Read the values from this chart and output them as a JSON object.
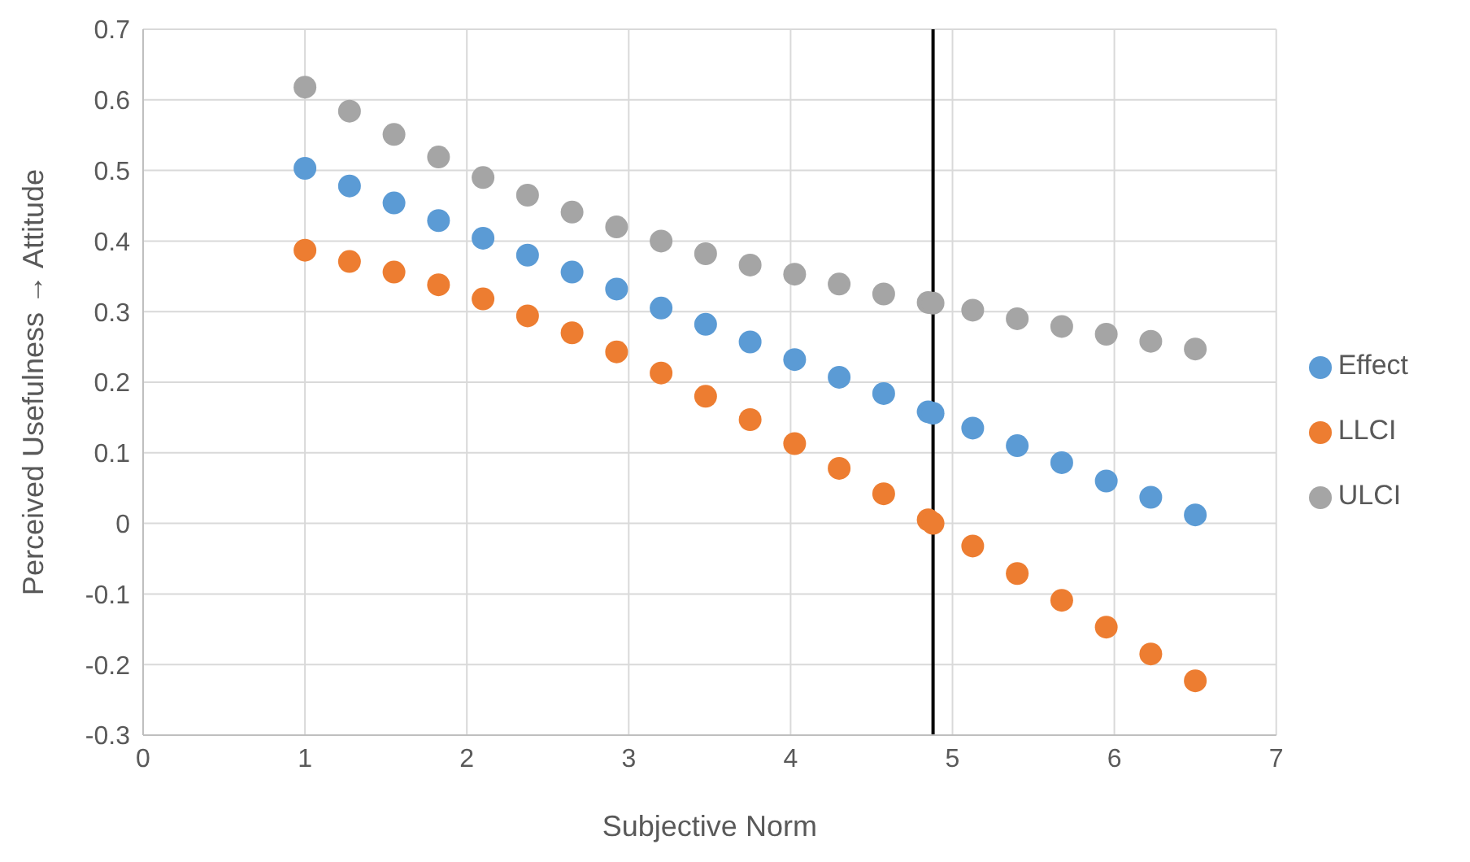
{
  "chart_data": {
    "type": "scatter",
    "xlabel": "Subjective Norm",
    "ylabel": "Perceived Usefulness → Attitude",
    "x": [
      1,
      1.275,
      1.55,
      1.825,
      2.1,
      2.375,
      2.65,
      2.925,
      3.2,
      3.475,
      3.75,
      4.025,
      4.3,
      4.575,
      4.85,
      4.88,
      5.125,
      5.4,
      5.675,
      5.95,
      6.225,
      6.5
    ],
    "series": [
      {
        "name": "Effect",
        "color": "#5b9bd5",
        "values": [
          0.503,
          0.478,
          0.454,
          0.429,
          0.404,
          0.38,
          0.356,
          0.332,
          0.305,
          0.282,
          0.257,
          0.232,
          0.207,
          0.184,
          0.158,
          0.156,
          0.135,
          0.11,
          0.086,
          0.06,
          0.037,
          0.012
        ]
      },
      {
        "name": "LLCI",
        "color": "#ed7d31",
        "values": [
          0.387,
          0.371,
          0.356,
          0.338,
          0.318,
          0.294,
          0.27,
          0.243,
          0.213,
          0.18,
          0.147,
          0.113,
          0.078,
          0.042,
          0.005,
          0,
          -0.032,
          -0.071,
          -0.109,
          -0.147,
          -0.185,
          -0.223
        ]
      },
      {
        "name": "ULCI",
        "color": "#a5a5a5",
        "values": [
          0.618,
          0.584,
          0.551,
          0.519,
          0.49,
          0.465,
          0.441,
          0.42,
          0.4,
          0.382,
          0.366,
          0.353,
          0.339,
          0.325,
          0.313,
          0.312,
          0.302,
          0.29,
          0.279,
          0.268,
          0.258,
          0.247
        ]
      }
    ],
    "xlim": [
      0,
      7
    ],
    "xticks": [
      0,
      1,
      2,
      3,
      4,
      5,
      6,
      7
    ],
    "ylim": [
      -0.3,
      0.7
    ],
    "yticks": [
      -0.3,
      -0.2,
      -0.1,
      0,
      0.1,
      0.2,
      0.3,
      0.4,
      0.5,
      0.6,
      0.7
    ],
    "ref_lines": [
      {
        "axis": "x",
        "value": 4.88,
        "color": "#000000"
      }
    ],
    "grid": true,
    "legend": "right",
    "marker": "circle"
  }
}
